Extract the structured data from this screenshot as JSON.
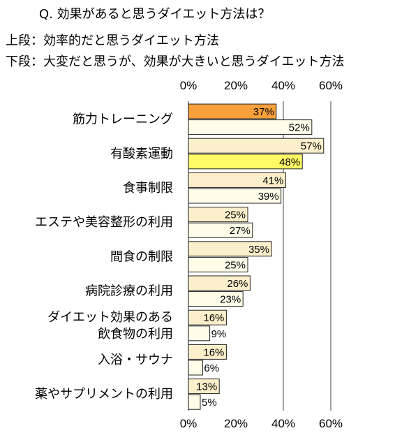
{
  "title": "Q. 効果があると思うダイエット方法は？",
  "legend": {
    "top": "上段：効率的だと思うダイエット方法",
    "bottom": "下段：大変だと思うが、効果が大きいと思うダイエット方法"
  },
  "colors": {
    "default_bar": "#FCEFCB",
    "top_default": "#FCEFCB",
    "bottom_default": "#FFFDE9",
    "highlight_orange": "#F7A03C",
    "highlight_yellow": "#FFFA66",
    "border": "#222222",
    "grid": "#444444"
  },
  "chart_data": {
    "type": "bar",
    "orientation": "horizontal",
    "categories": [
      "筋力トレーニング",
      "有酸素運動",
      "食事制限",
      "エステや美容整形の利用",
      "間食の制限",
      "病院診療の利用",
      "ダイエット効果のある\n飲食物の利用",
      "入浴・サウナ",
      "薬やサプリメントの利用"
    ],
    "series": [
      {
        "values": [
          37,
          57,
          41,
          25,
          35,
          26,
          16,
          16,
          13
        ],
        "labels": [
          "37%",
          "57%",
          "41%",
          "25%",
          "35%",
          "26%",
          "16%",
          "16%",
          "13%"
        ]
      },
      {
        "values": [
          52,
          48,
          39,
          27,
          25,
          23,
          9,
          6,
          5
        ],
        "labels": [
          "52%",
          "48%",
          "39%",
          "27%",
          "25%",
          "23%",
          "9%",
          "6%",
          "5%"
        ]
      }
    ],
    "highlight": [
      {
        "series": 0,
        "index": 0,
        "color": "highlight_orange"
      },
      {
        "series": 1,
        "index": 1,
        "color": "highlight_yellow"
      }
    ],
    "xlim": [
      0,
      70
    ],
    "x_ticks": [
      0,
      20,
      40,
      60
    ],
    "x_tick_labels": [
      "0%",
      "20%",
      "40%",
      "60%"
    ],
    "x_tick_labels_position": "top and bottom",
    "grid": "vertical lines at 40% and 60%"
  }
}
